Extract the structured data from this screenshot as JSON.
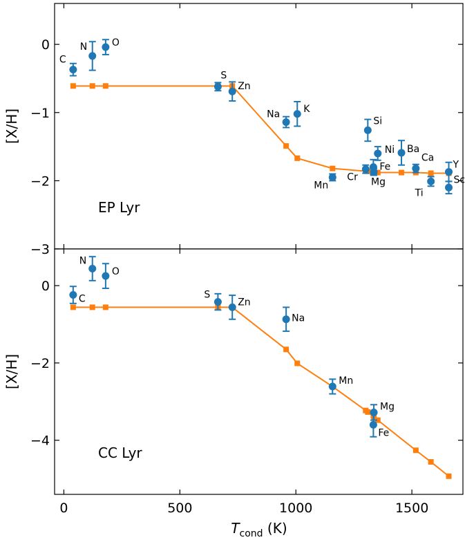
{
  "chart_data": [
    {
      "type": "scatter",
      "panel_label": "EP Lyr",
      "xlabel_main": "T",
      "xlabel_sub": "cond",
      "xlabel_unit": " (K)",
      "ylabel": "[X/H]",
      "xlim": [
        -40,
        1720
      ],
      "ylim": [
        -3,
        0.6
      ],
      "xticks": [
        0,
        500,
        1000,
        1500
      ],
      "xtick_labels": [
        "0",
        "500",
        "1000",
        "1500"
      ],
      "yticks": [
        -3,
        -2,
        -1,
        0
      ],
      "ytick_labels": [
        "−3",
        "−2",
        "−1",
        "0"
      ],
      "colors": {
        "observed": "#1f77b4",
        "model": "#ff7f0e"
      },
      "observed": [
        {
          "label": "C",
          "x": 40,
          "y": -0.37,
          "err": 0.09
        },
        {
          "label": "N",
          "x": 123,
          "y": -0.17,
          "err": 0.21
        },
        {
          "label": "O",
          "x": 180,
          "y": -0.04,
          "err": 0.11
        },
        {
          "label": "S",
          "x": 664,
          "y": -0.62,
          "err": 0.06
        },
        {
          "label": "Zn",
          "x": 726,
          "y": -0.69,
          "err": 0.14
        },
        {
          "label": "Na",
          "x": 958,
          "y": -1.14,
          "err": 0.08
        },
        {
          "label": "K",
          "x": 1006,
          "y": -1.02,
          "err": 0.18
        },
        {
          "label": "Mn",
          "x": 1158,
          "y": -1.95,
          "err": 0.05
        },
        {
          "label": "Si",
          "x": 1310,
          "y": -1.26,
          "err": 0.16
        },
        {
          "label": "Cr",
          "x": 1301,
          "y": -1.83,
          "err": 0.06
        },
        {
          "label": "Fe",
          "x": 1334,
          "y": -1.8,
          "err": 0.11
        },
        {
          "label": "Mg",
          "x": 1336,
          "y": -1.87,
          "err": 0.05
        },
        {
          "label": "Ni",
          "x": 1353,
          "y": -1.6,
          "err": 0.1
        },
        {
          "label": "Ba",
          "x": 1455,
          "y": -1.59,
          "err": 0.18
        },
        {
          "label": "Ca",
          "x": 1517,
          "y": -1.82,
          "err": 0.06
        },
        {
          "label": "Ti",
          "x": 1582,
          "y": -2.01,
          "err": 0.07
        },
        {
          "label": "Y",
          "x": 1659,
          "y": -1.87,
          "err": 0.14
        },
        {
          "label": "Sc",
          "x": 1659,
          "y": -2.1,
          "err": 0.09
        }
      ],
      "model": {
        "x": [
          40,
          123,
          180,
          664,
          726,
          958,
          1006,
          1158,
          1301,
          1310,
          1334,
          1336,
          1353,
          1455,
          1517,
          1582,
          1659
        ],
        "y": [
          -0.61,
          -0.61,
          -0.61,
          -0.61,
          -0.61,
          -1.49,
          -1.67,
          -1.82,
          -1.86,
          -1.86,
          -1.87,
          -1.87,
          -1.88,
          -1.88,
          -1.88,
          -1.89,
          -1.89
        ]
      }
    },
    {
      "type": "scatter",
      "panel_label": "CC Lyr",
      "xlabel_main": "T",
      "xlabel_sub": "cond",
      "xlabel_unit": " (K)",
      "ylabel": "[X/H]",
      "xlim": [
        -40,
        1720
      ],
      "ylim": [
        -5.4,
        0.95
      ],
      "xticks": [
        0,
        500,
        1000,
        1500
      ],
      "xtick_labels": [
        "0",
        "500",
        "1000",
        "1500"
      ],
      "yticks": [
        -4,
        -2,
        0
      ],
      "ytick_labels": [
        "−4",
        "−2",
        "0"
      ],
      "colors": {
        "observed": "#1f77b4",
        "model": "#ff7f0e"
      },
      "observed": [
        {
          "label": "C",
          "x": 40,
          "y": -0.24,
          "err": 0.22
        },
        {
          "label": "N",
          "x": 123,
          "y": 0.44,
          "err": 0.31
        },
        {
          "label": "O",
          "x": 180,
          "y": 0.25,
          "err": 0.32
        },
        {
          "label": "S",
          "x": 664,
          "y": -0.42,
          "err": 0.21
        },
        {
          "label": "Zn",
          "x": 726,
          "y": -0.56,
          "err": 0.31
        },
        {
          "label": "Na",
          "x": 958,
          "y": -0.87,
          "err": 0.31
        },
        {
          "label": "Mn",
          "x": 1158,
          "y": -2.61,
          "err": 0.19
        },
        {
          "label": "Mg",
          "x": 1336,
          "y": -3.28,
          "err": 0.2
        },
        {
          "label": "Fe",
          "x": 1334,
          "y": -3.6,
          "err": 0.31
        }
      ],
      "model": {
        "x": [
          40,
          123,
          180,
          664,
          726,
          958,
          1006,
          1158,
          1301,
          1310,
          1334,
          1336,
          1353,
          1517,
          1582,
          1659
        ],
        "y": [
          -0.56,
          -0.56,
          -0.56,
          -0.56,
          -0.56,
          -1.65,
          -2.01,
          -2.61,
          -3.23,
          -3.27,
          -3.37,
          -3.39,
          -3.48,
          -4.26,
          -4.56,
          -4.93
        ]
      }
    }
  ]
}
